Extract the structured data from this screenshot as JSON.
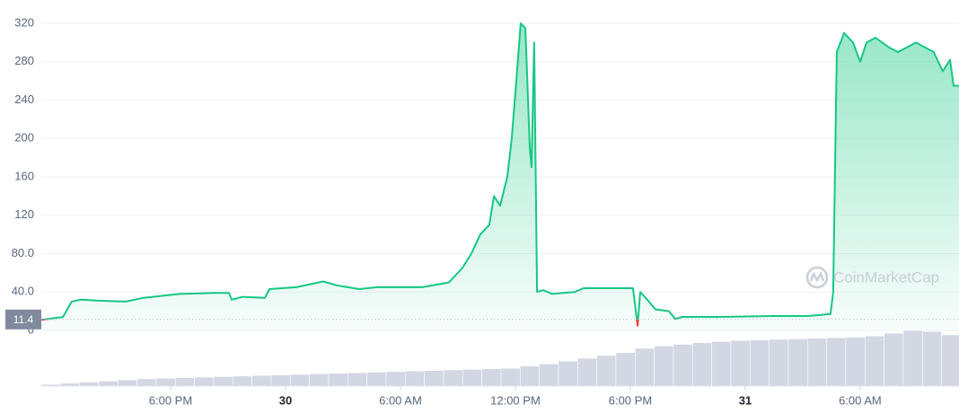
{
  "chart_data": {
    "type": "line",
    "color": "#16c784",
    "below_color": "#ea3943",
    "watermark": "CoinMarketCap",
    "x": [
      11.25,
      12.38,
      12.84,
      13.31,
      14.25,
      15.66,
      16.59,
      18.47,
      20.34,
      21.05,
      21.19,
      21.75,
      22.92,
      23.16,
      24.56,
      25.97,
      26.67,
      27.84,
      28.78,
      31.13,
      32.53,
      33.23,
      33.7,
      34.17,
      34.64,
      34.88,
      35.2,
      35.58,
      35.81,
      36.05,
      36.28,
      36.52,
      36.75,
      36.84,
      36.98,
      37.13,
      37.45,
      37.92,
      39.09,
      39.56,
      40.97,
      42.14,
      42.38,
      42.52,
      42.84,
      43.31,
      44.02,
      44.34,
      44.72,
      46.59,
      49.41,
      51.28,
      52.45,
      52.59,
      52.78,
      53.16,
      53.63,
      54.0,
      54.33,
      54.8,
      55.5,
      55.97,
      56.91,
      57.84,
      58.31,
      58.69,
      58.88,
      59.16
    ],
    "values": [
      11,
      14,
      30,
      32,
      31,
      30,
      34,
      38,
      39,
      39,
      32,
      35,
      34,
      43,
      45,
      51,
      47,
      43,
      45,
      45,
      50,
      65,
      80,
      100,
      110,
      140,
      130,
      160,
      200,
      260,
      320,
      315,
      190,
      170,
      300,
      40,
      42,
      38,
      40,
      44,
      44,
      44,
      5,
      40,
      33,
      22,
      20,
      12,
      14,
      14,
      15,
      15,
      17,
      40,
      290,
      310,
      300,
      280,
      300,
      305,
      295,
      290,
      300,
      290,
      270,
      282,
      255,
      255
    ],
    "reference_line": 11.4,
    "xlim": [
      11.25,
      59.16
    ],
    "xticks": [
      {
        "value": 18,
        "label": "6:00 PM"
      },
      {
        "value": 24,
        "label": "30"
      },
      {
        "value": 30,
        "label": "6:00 AM"
      },
      {
        "value": 36,
        "label": "12:00 PM"
      },
      {
        "value": 42,
        "label": "6:00 PM"
      },
      {
        "value": 48,
        "label": "31"
      },
      {
        "value": 54,
        "label": "6:00 AM"
      }
    ],
    "ylim": [
      0,
      340
    ],
    "yticks": [
      0,
      {
        "value": 40,
        "label": "40.0"
      },
      {
        "value": 80,
        "label": "80.0"
      },
      120,
      160,
      200,
      240,
      280,
      320
    ],
    "grid": true,
    "volume": {
      "color": "#d3d7e3",
      "ylim": [
        0,
        100
      ],
      "x": [
        11.75,
        12.75,
        13.75,
        14.75,
        15.75,
        16.75,
        17.75,
        18.75,
        19.75,
        20.75,
        21.75,
        22.75,
        23.75,
        24.75,
        25.75,
        26.75,
        27.75,
        28.75,
        29.75,
        30.75,
        31.75,
        32.75,
        33.75,
        34.75,
        35.75,
        36.75,
        37.75,
        38.75,
        39.75,
        40.75,
        41.75,
        42.75,
        43.75,
        44.75,
        45.75,
        46.75,
        47.75,
        48.75,
        49.75,
        50.75,
        51.75,
        52.75,
        53.75,
        54.75,
        55.75,
        56.75,
        57.75,
        58.75
      ],
      "values": [
        3,
        5,
        7,
        9,
        11,
        13,
        14,
        15,
        16,
        17,
        18,
        19,
        20,
        21,
        22,
        23,
        24,
        25,
        26,
        27,
        28,
        29,
        30,
        31,
        32,
        36,
        40,
        45,
        50,
        55,
        60,
        68,
        72,
        75,
        78,
        80,
        82,
        83,
        84,
        85,
        86,
        87,
        88,
        90,
        95,
        100,
        98,
        92
      ]
    }
  }
}
